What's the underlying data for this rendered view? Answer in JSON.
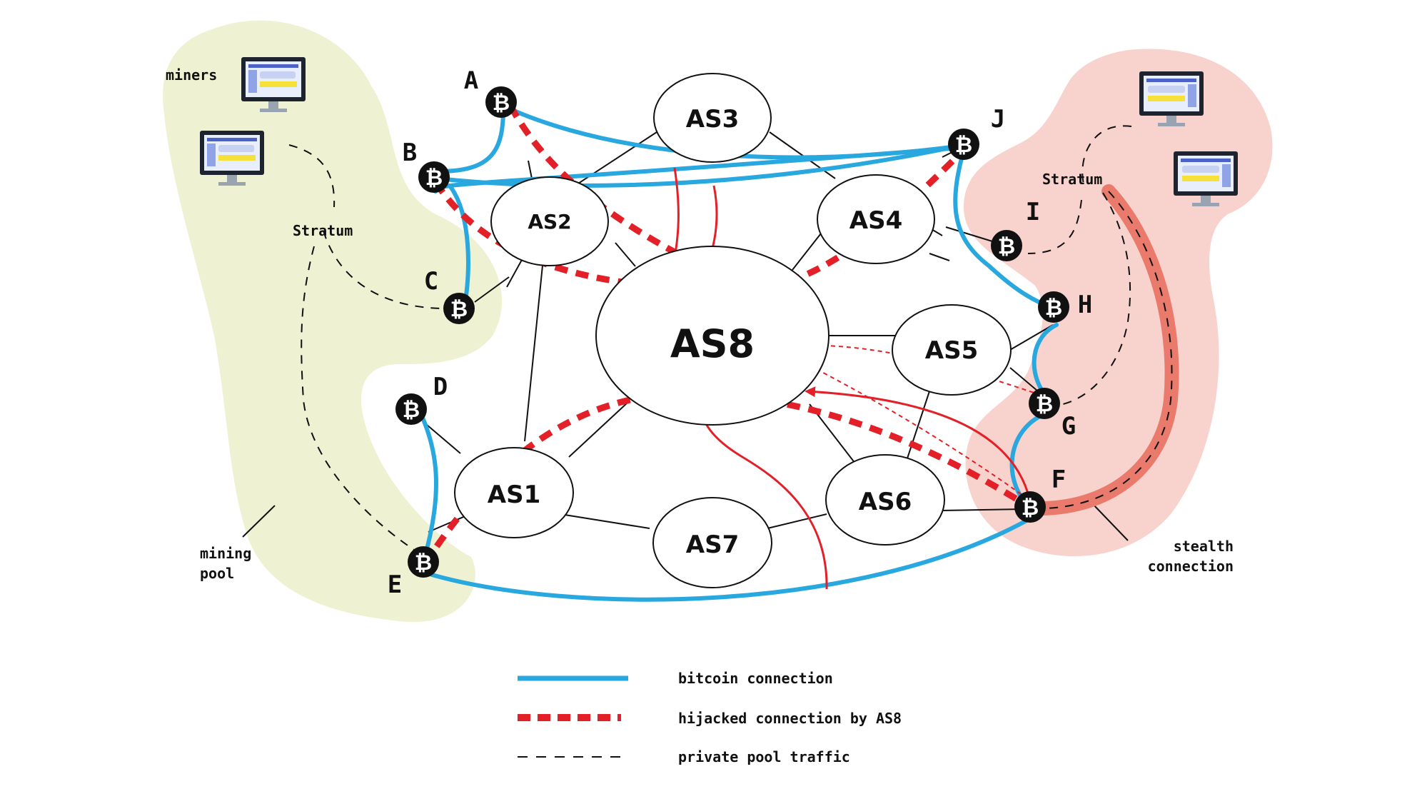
{
  "diagram": {
    "pool_left_labels": {
      "miners": "miners",
      "stratum": "Stratum",
      "mining_pool_line1": "mining",
      "mining_pool_line2": "pool"
    },
    "pool_right_labels": {
      "stratum": "Stratum",
      "stealth_line1": "stealth",
      "stealth_line2": "connection"
    },
    "autonomous_systems": [
      "AS1",
      "AS2",
      "AS3",
      "AS4",
      "AS5",
      "AS6",
      "AS7",
      "AS8"
    ],
    "bitcoin_nodes": [
      "A",
      "B",
      "C",
      "D",
      "E",
      "F",
      "G",
      "H",
      "I",
      "J"
    ],
    "bitcoin_glyph": "₿",
    "colors": {
      "bitcoin_connection": "#29a8e0",
      "hijacked": "#e32027",
      "left_pool": "#eef2d2",
      "right_pool": "#f8d3cd",
      "stealth": "#ea7b6c"
    }
  },
  "legend": {
    "bitcoin": "bitcoin connection",
    "hijacked": "hijacked connection by AS8",
    "private": "private pool traffic"
  }
}
